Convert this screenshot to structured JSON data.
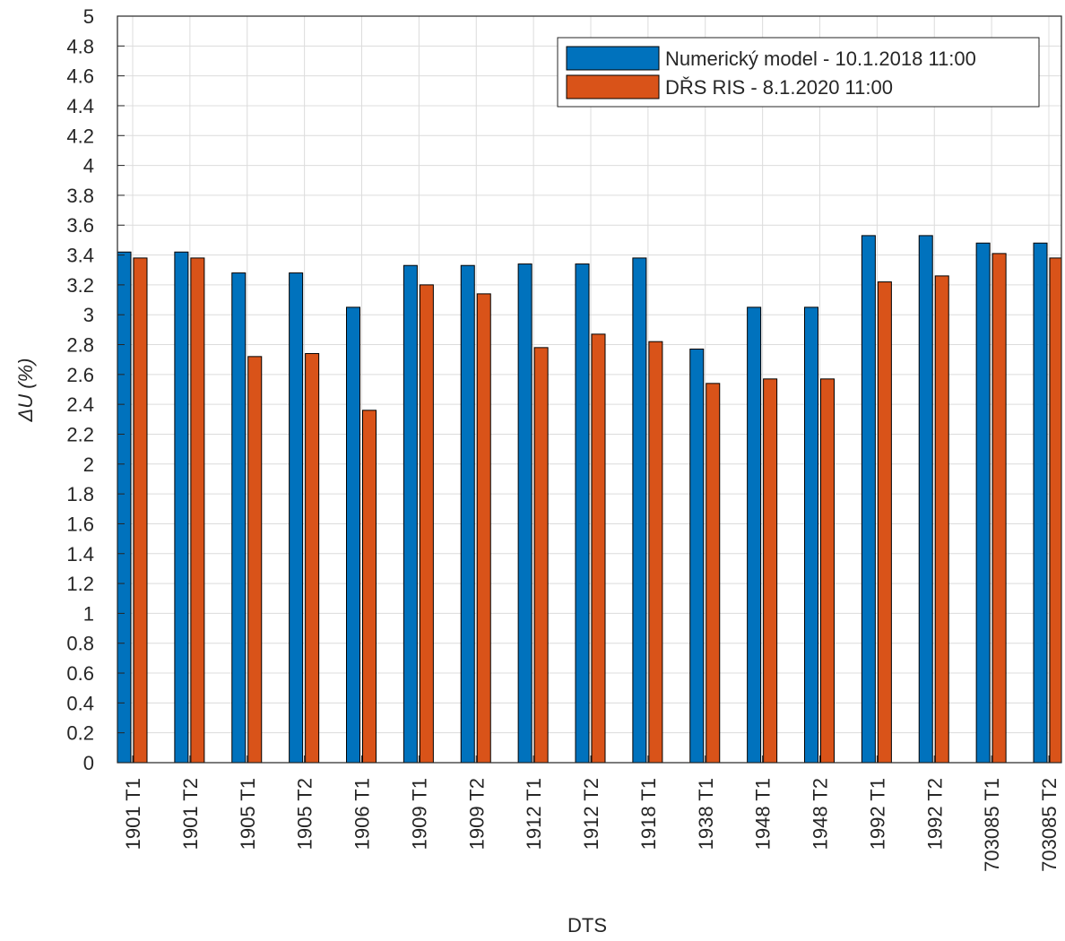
{
  "chart_data": {
    "type": "bar",
    "xlabel": "DTS",
    "ylabel": "ΔU (%)",
    "categories": [
      "1901 T1",
      "1901 T2",
      "1905 T1",
      "1905 T2",
      "1906 T1",
      "1909 T1",
      "1909 T2",
      "1912 T1",
      "1912 T2",
      "1918 T1",
      "1938 T1",
      "1948 T1",
      "1948 T2",
      "1992 T1",
      "1992 T2",
      "703085 T1",
      "703085 T2"
    ],
    "series": [
      {
        "name": "Numerický model - 10.1.2018 11:00",
        "color": "#0072BD",
        "values": [
          3.42,
          3.42,
          3.28,
          3.28,
          3.05,
          3.33,
          3.33,
          3.34,
          3.34,
          3.38,
          2.77,
          3.05,
          3.05,
          3.53,
          3.53,
          3.48,
          3.48
        ]
      },
      {
        "name": "DŘS RIS - 8.1.2020 11:00",
        "color": "#D95319",
        "values": [
          3.38,
          3.38,
          2.72,
          2.74,
          2.36,
          3.2,
          3.14,
          2.78,
          2.87,
          2.82,
          2.54,
          2.57,
          2.57,
          3.22,
          3.26,
          3.41,
          3.38
        ]
      }
    ],
    "ylim": [
      0,
      5
    ],
    "yticks": [
      0,
      0.2,
      0.4,
      0.6,
      0.8,
      1,
      1.2,
      1.4,
      1.6,
      1.8,
      2,
      2.2,
      2.4,
      2.6,
      2.8,
      3,
      3.2,
      3.4,
      3.6,
      3.8,
      4,
      4.2,
      4.4,
      4.6,
      4.8,
      5
    ],
    "grid": true,
    "legend": "northeast"
  }
}
